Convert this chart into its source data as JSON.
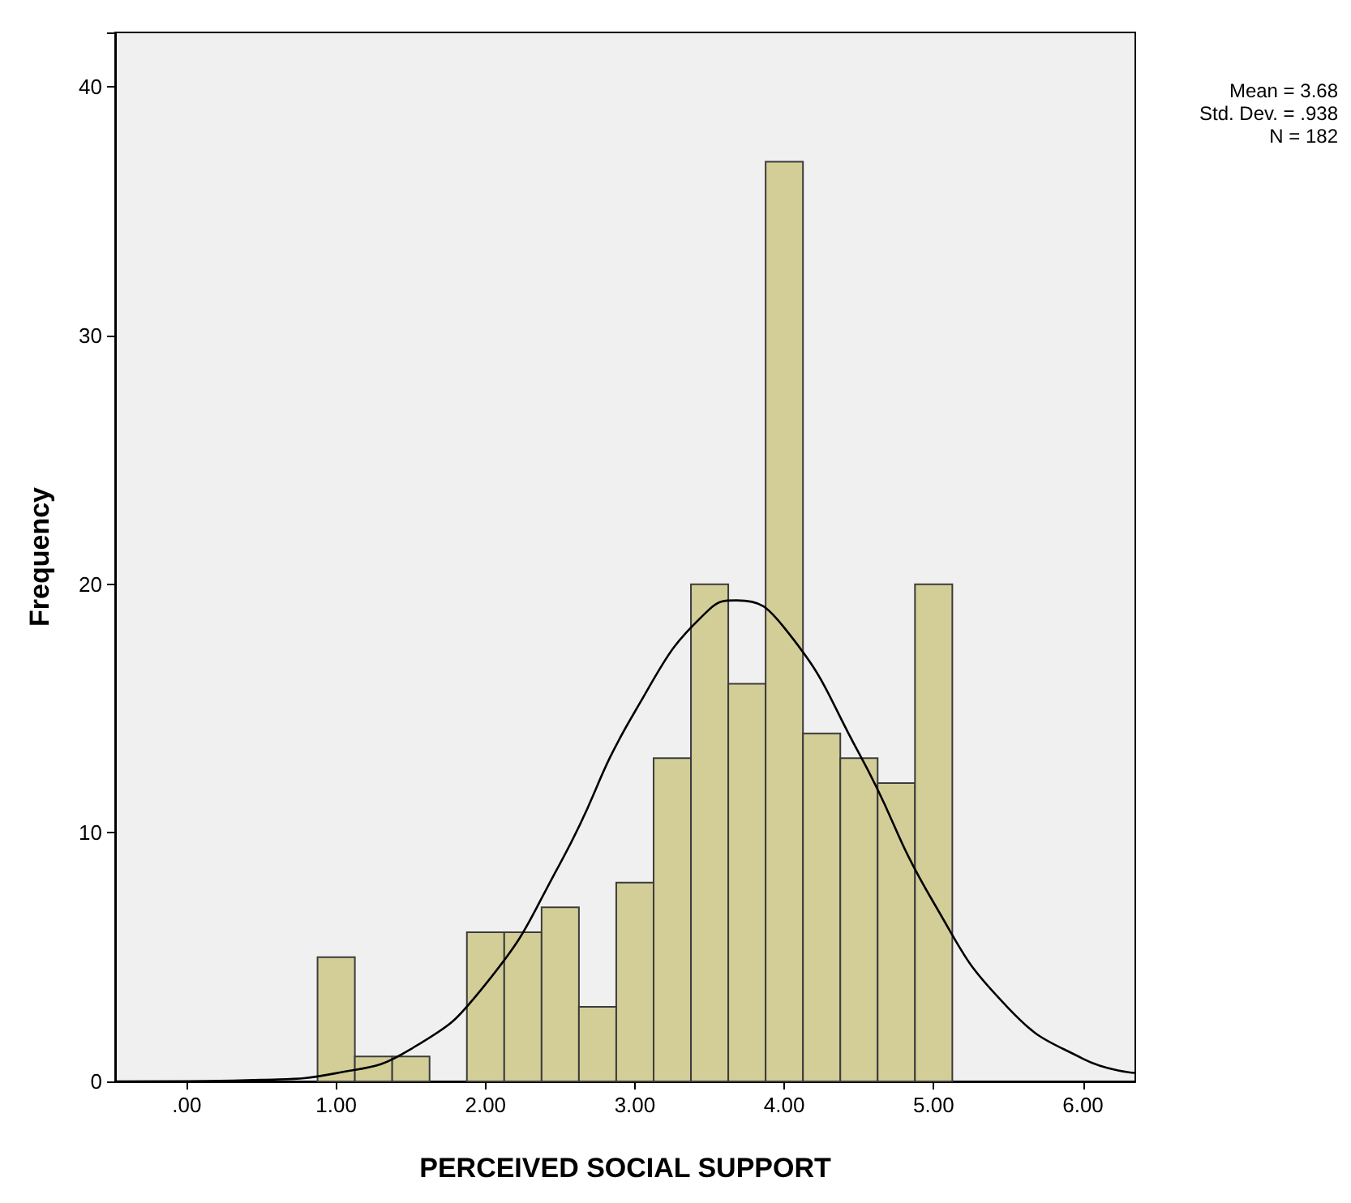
{
  "chart_data": {
    "type": "histogram",
    "xlabel": "PERCEIVED SOCIAL SUPPORT",
    "ylabel": "Frequency",
    "bins": [
      0.875,
      1.125,
      1.375,
      1.625,
      1.875,
      2.125,
      2.375,
      2.625,
      2.875,
      3.125,
      3.375,
      3.625,
      3.875,
      4.125,
      4.375,
      4.625,
      4.875,
      5.125
    ],
    "values": [
      5,
      1,
      1,
      0,
      6,
      6,
      7,
      3,
      8,
      13,
      20,
      16,
      37,
      14,
      13,
      12,
      20
    ],
    "color": "#d3ce97",
    "series": [
      {
        "type": "line",
        "color": "#000000",
        "x": [
          -0.48,
          0,
          0.5,
          1,
          1.5,
          2,
          2.5,
          3,
          3.5,
          3.68,
          4,
          4.5,
          5,
          5.5,
          6,
          6.35
        ],
        "values": [
          0,
          0.01,
          0.06,
          0.33,
          1.3,
          3.91,
          8.78,
          14.88,
          19,
          19.35,
          18.25,
          13.2,
          7.19,
          2.95,
          0.91,
          0.34
        ]
      }
    ],
    "xlim": [
      -0.48,
      6.35
    ],
    "ylim": [
      0,
      42.2
    ],
    "xticks": [
      {
        "value": 0,
        "label": ".00"
      },
      {
        "value": 1,
        "label": "1.00"
      },
      {
        "value": 2,
        "label": "2.00"
      },
      {
        "value": 3,
        "label": "3.00"
      },
      {
        "value": 4,
        "label": "4.00"
      },
      {
        "value": 5,
        "label": "5.00"
      },
      {
        "value": 6,
        "label": "6.00"
      }
    ],
    "yticks": [
      0,
      10,
      20,
      30,
      40
    ],
    "grid": false,
    "annotations": [
      "Mean = 3.68",
      "Std. Dev. = .938",
      "N = 182"
    ]
  }
}
